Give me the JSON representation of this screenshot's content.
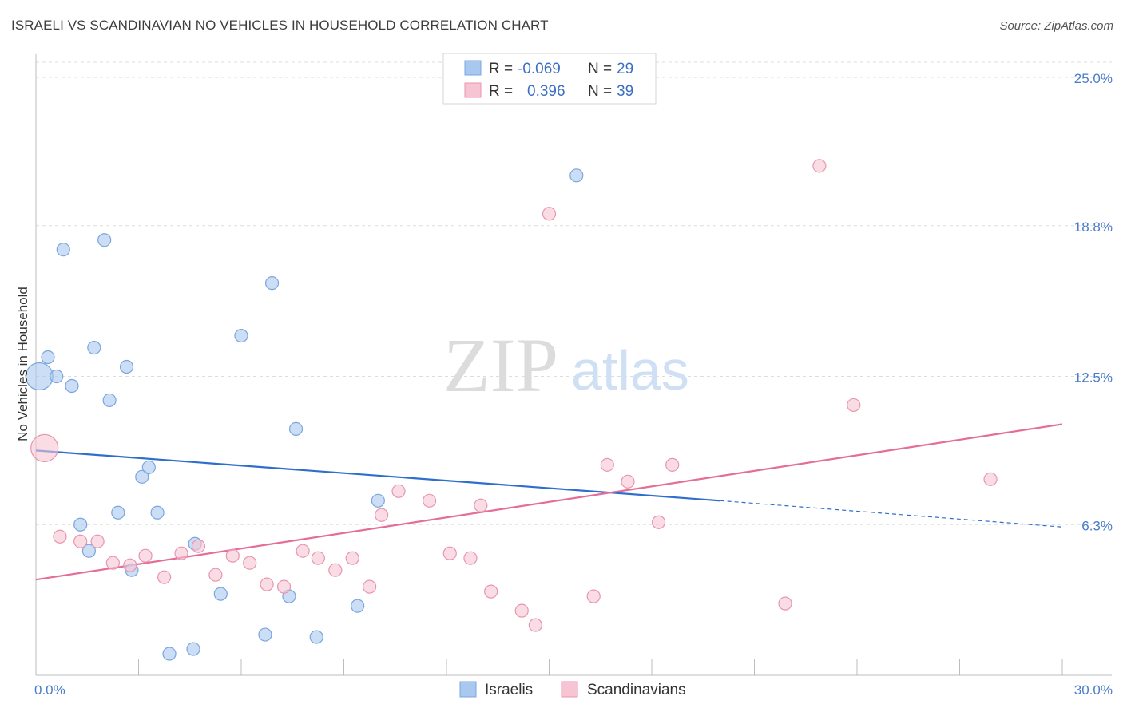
{
  "title": "ISRAELI VS SCANDINAVIAN NO VEHICLES IN HOUSEHOLD CORRELATION CHART",
  "source": "Source: ZipAtlas.com",
  "watermark": {
    "zip": "ZIP",
    "atlas": "atlas"
  },
  "chart_data": {
    "type": "scatter",
    "xlabel": "",
    "ylabel": "No Vehicles in Household",
    "xlim": [
      0,
      30
    ],
    "ylim": [
      0,
      25
    ],
    "x_tick_labels": [
      {
        "value": 0,
        "label": "0.0%"
      },
      {
        "value": 30,
        "label": "30.0%"
      }
    ],
    "y_tick_labels": [
      {
        "value": 6.3,
        "label": "6.3%"
      },
      {
        "value": 12.5,
        "label": "12.5%"
      },
      {
        "value": 18.8,
        "label": "18.8%"
      },
      {
        "value": 25.0,
        "label": "25.0%"
      }
    ],
    "grid": true,
    "legend_position": "top-center",
    "series": [
      {
        "name": "Israelis",
        "color": "#a9c8f0",
        "stroke": "#7aa6dd",
        "trend_color": "#2f6fcc",
        "R": "-0.069",
        "N": "29",
        "trend": {
          "x0": 0,
          "y0": 9.4,
          "x1": 20.0,
          "y1": 7.3,
          "dash_x1": 30.0,
          "dash_y1": 6.2
        },
        "points": [
          {
            "x": 0.1,
            "y": 12.5,
            "big": true
          },
          {
            "x": 0.35,
            "y": 13.3
          },
          {
            "x": 0.6,
            "y": 12.5
          },
          {
            "x": 0.8,
            "y": 17.8
          },
          {
            "x": 1.05,
            "y": 12.1
          },
          {
            "x": 1.3,
            "y": 6.3
          },
          {
            "x": 1.55,
            "y": 5.2
          },
          {
            "x": 1.7,
            "y": 13.7
          },
          {
            "x": 2.0,
            "y": 18.2
          },
          {
            "x": 2.15,
            "y": 11.5
          },
          {
            "x": 2.4,
            "y": 6.8
          },
          {
            "x": 2.65,
            "y": 12.9
          },
          {
            "x": 2.8,
            "y": 4.4
          },
          {
            "x": 3.1,
            "y": 8.3
          },
          {
            "x": 3.3,
            "y": 8.7
          },
          {
            "x": 3.55,
            "y": 6.8
          },
          {
            "x": 3.9,
            "y": 0.9
          },
          {
            "x": 4.6,
            "y": 1.1
          },
          {
            "x": 4.65,
            "y": 5.5
          },
          {
            "x": 5.4,
            "y": 3.4
          },
          {
            "x": 6.0,
            "y": 14.2
          },
          {
            "x": 6.7,
            "y": 1.7
          },
          {
            "x": 6.9,
            "y": 16.4
          },
          {
            "x": 7.4,
            "y": 3.3
          },
          {
            "x": 7.6,
            "y": 10.3
          },
          {
            "x": 8.2,
            "y": 1.6
          },
          {
            "x": 9.4,
            "y": 2.9
          },
          {
            "x": 10.0,
            "y": 7.3
          },
          {
            "x": 15.8,
            "y": 20.9
          }
        ]
      },
      {
        "name": "Scandinavians",
        "color": "#f7c4d4",
        "stroke": "#e896b0",
        "trend_color": "#e46d9a",
        "R": "0.396",
        "N": "39",
        "trend": {
          "x0": 0,
          "y0": 4.0,
          "x1": 30.0,
          "y1": 10.5
        },
        "points": [
          {
            "x": 0.25,
            "y": 9.5,
            "big": true
          },
          {
            "x": 0.7,
            "y": 5.8
          },
          {
            "x": 1.3,
            "y": 5.6
          },
          {
            "x": 1.8,
            "y": 5.6
          },
          {
            "x": 2.25,
            "y": 4.7
          },
          {
            "x": 2.75,
            "y": 4.6
          },
          {
            "x": 3.2,
            "y": 5.0
          },
          {
            "x": 3.75,
            "y": 4.1
          },
          {
            "x": 4.25,
            "y": 5.1
          },
          {
            "x": 4.75,
            "y": 5.4
          },
          {
            "x": 5.25,
            "y": 4.2
          },
          {
            "x": 5.75,
            "y": 5.0
          },
          {
            "x": 6.25,
            "y": 4.7
          },
          {
            "x": 6.75,
            "y": 3.8
          },
          {
            "x": 7.25,
            "y": 3.7
          },
          {
            "x": 7.8,
            "y": 5.2
          },
          {
            "x": 8.25,
            "y": 4.9
          },
          {
            "x": 8.75,
            "y": 4.4
          },
          {
            "x": 9.25,
            "y": 4.9
          },
          {
            "x": 9.75,
            "y": 3.7
          },
          {
            "x": 10.1,
            "y": 6.7
          },
          {
            "x": 10.6,
            "y": 7.7
          },
          {
            "x": 11.5,
            "y": 7.3
          },
          {
            "x": 12.1,
            "y": 5.1
          },
          {
            "x": 12.7,
            "y": 4.9
          },
          {
            "x": 13.3,
            "y": 3.5
          },
          {
            "x": 13.0,
            "y": 7.1
          },
          {
            "x": 14.2,
            "y": 2.7
          },
          {
            "x": 14.6,
            "y": 2.1
          },
          {
            "x": 15.0,
            "y": 19.3
          },
          {
            "x": 16.3,
            "y": 3.3
          },
          {
            "x": 16.7,
            "y": 8.8
          },
          {
            "x": 17.3,
            "y": 8.1
          },
          {
            "x": 18.2,
            "y": 6.4
          },
          {
            "x": 18.6,
            "y": 8.8
          },
          {
            "x": 21.9,
            "y": 3.0
          },
          {
            "x": 22.9,
            "y": 21.3
          },
          {
            "x": 23.9,
            "y": 11.3
          },
          {
            "x": 27.9,
            "y": 8.2
          }
        ]
      }
    ]
  }
}
